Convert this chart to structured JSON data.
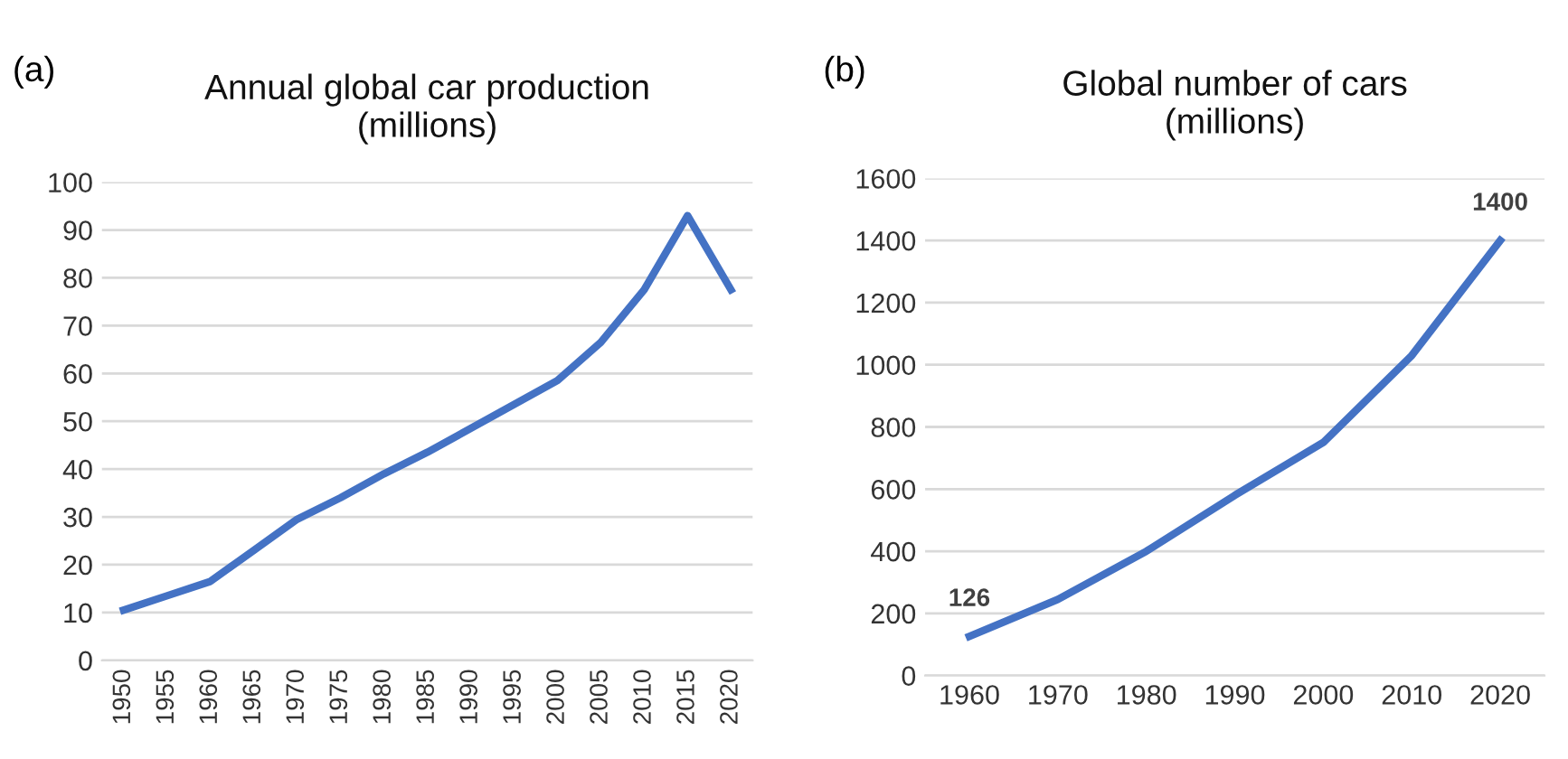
{
  "chart_data": [
    {
      "type": "line",
      "title": "Annual global car production\n(millions)",
      "annotations": [
        "(a)"
      ],
      "categories": [
        "1950",
        "1955",
        "1960",
        "1965",
        "1970",
        "1975",
        "1980",
        "1985",
        "1990",
        "1995",
        "2000",
        "2005",
        "2010",
        "2015",
        "2020"
      ],
      "series": [
        {
          "color": "#4472c4",
          "values": [
            10.5,
            13.5,
            16.5,
            23,
            29.5,
            34,
            39,
            43.5,
            48.5,
            53.5,
            58.5,
            66.5,
            77.5,
            93,
            77.5
          ]
        }
      ],
      "ylim": [
        0,
        100
      ],
      "yticks": [
        0,
        10,
        20,
        30,
        40,
        50,
        60,
        70,
        80,
        90,
        100
      ],
      "grid": "y",
      "marker": "none",
      "line_style": "solid"
    },
    {
      "type": "line",
      "title": "Global number of cars\n(millions)",
      "annotations": [
        "(b)"
      ],
      "categories": [
        "1960",
        "1970",
        "1980",
        "1990",
        "2000",
        "2010",
        "2020"
      ],
      "series": [
        {
          "color": "#4472c4",
          "values": [
            126,
            245,
            400,
            580,
            750,
            1030,
            1400
          ],
          "value_labels": [
            "126",
            null,
            null,
            null,
            null,
            null,
            "1400"
          ]
        }
      ],
      "ylim": [
        0,
        1600
      ],
      "yticks": [
        0,
        200,
        400,
        600,
        800,
        1000,
        1200,
        1400,
        1600
      ],
      "grid": "y",
      "marker": "none",
      "line_style": "solid"
    }
  ]
}
